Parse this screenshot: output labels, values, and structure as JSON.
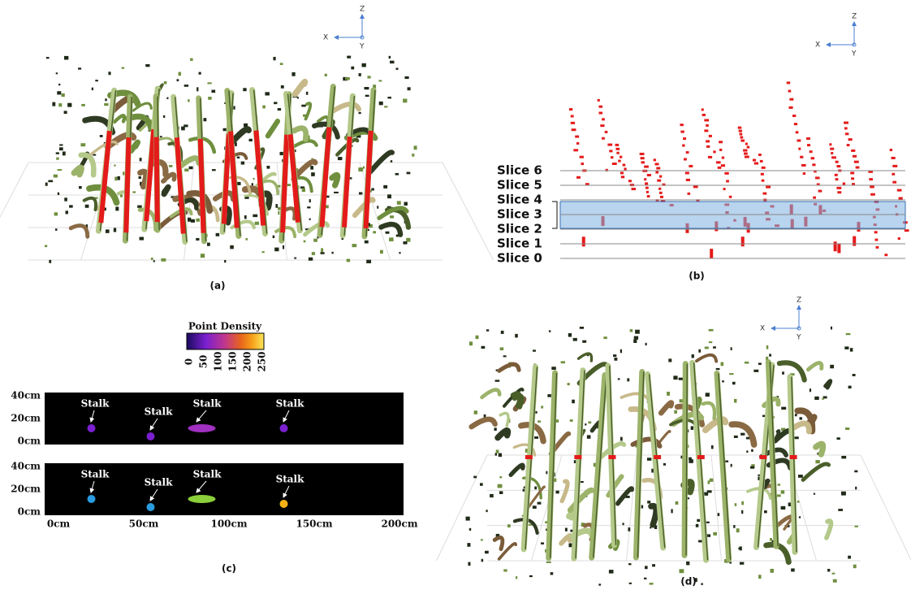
{
  "panels": [
    {
      "axes": {
        "z": "Z",
        "x": "X",
        "y": "Y"
      },
      "caption": "(a)"
    },
    {
      "axes": {
        "z": "Z",
        "x": "X",
        "y": "Y"
      },
      "slices": [
        "Slice 6",
        "Slice 5",
        "Slice 4",
        "Slice 3",
        "Slice 2",
        "Slice 1",
        "Slice 0"
      ],
      "caption": "(b)"
    },
    {
      "colorbar": {
        "title": "Point Density",
        "ticks": [
          "0",
          "50",
          "100",
          "150",
          "200",
          "250"
        ]
      },
      "plots": [
        {
          "yticks": [
            "40cm",
            "20cm",
            "0cm"
          ],
          "labels": [
            "Stalk",
            "Stalk",
            "Stalk",
            "Stalk"
          ]
        },
        {
          "yticks": [
            "40cm",
            "20cm",
            "0cm"
          ],
          "labels": [
            "Stalk",
            "Stalk",
            "Stalk",
            "Stalk"
          ]
        }
      ],
      "xticks": [
        "0cm",
        "50cm",
        "100cm",
        "150cm",
        "200cm"
      ],
      "caption": "(c)"
    },
    {
      "axes": {
        "z": "Z",
        "x": "X",
        "y": "Y"
      },
      "caption": "(d)"
    }
  ]
}
